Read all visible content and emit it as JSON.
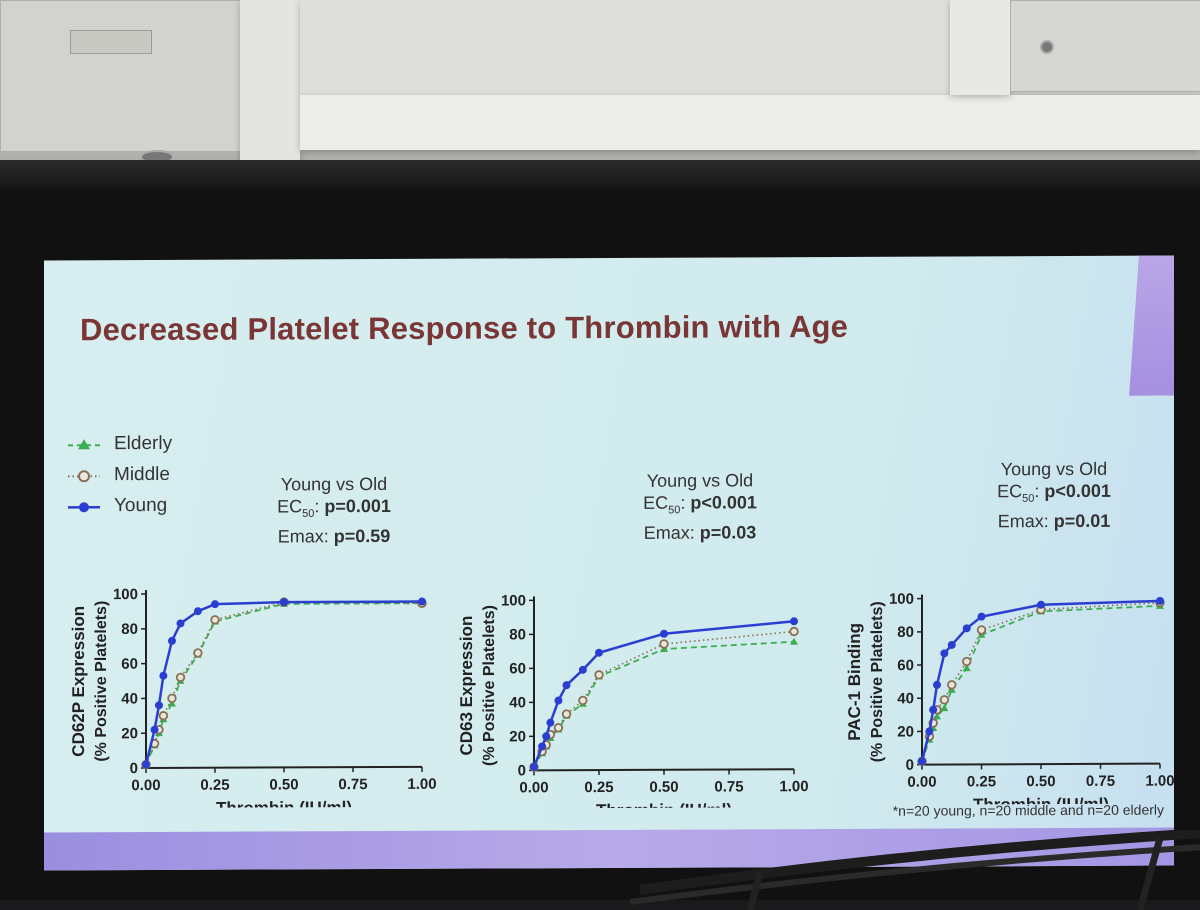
{
  "slide": {
    "title": "Decreased Platelet Response to Thrombin with Age",
    "legend": [
      {
        "label": "Elderly",
        "color": "#3cae4f",
        "marker": "triangle",
        "line": "dashed"
      },
      {
        "label": "Middle",
        "color": "#8a6f55",
        "marker": "open-circle",
        "line": "dotted"
      },
      {
        "label": "Young",
        "color": "#2a3fd2",
        "marker": "filled-circle",
        "line": "solid"
      }
    ],
    "stats": [
      {
        "heading": "Young vs Old",
        "ec_label": "EC",
        "ec_sub": "50",
        "ec_value": "p=0.001",
        "emax_label": "Emax:",
        "emax_value": "p=0.59"
      },
      {
        "heading": "Young vs Old",
        "ec_label": "EC",
        "ec_sub": "50",
        "ec_value": "p<0.001",
        "emax_label": "Emax:",
        "emax_value": "p=0.03"
      },
      {
        "heading": "Young vs Old",
        "ec_label": "EC",
        "ec_sub": "50",
        "ec_value": "p<0.001",
        "emax_label": "Emax:",
        "emax_value": "p=0.01"
      }
    ],
    "footnote": "*n=20 young, n=20 middle and n=20 elderly"
  },
  "chart_data": [
    {
      "type": "line",
      "xlabel": "Thrombin (IU/ml)",
      "ylabel": "CD62P Expression",
      "ylabel2": "(% Positive Platelets)",
      "xlim": [
        0,
        1.0
      ],
      "ylim": [
        0,
        100
      ],
      "xticks": [
        "0.00",
        "0.25",
        "0.50",
        "0.75",
        "1.00"
      ],
      "yticks": [
        "0",
        "20",
        "40",
        "60",
        "80",
        "100"
      ],
      "x": [
        0,
        0.031,
        0.047,
        0.063,
        0.094,
        0.125,
        0.188,
        0.25,
        0.5,
        1.0
      ],
      "series": [
        {
          "name": "Young",
          "values": [
            2,
            22,
            36,
            53,
            73,
            83,
            90,
            94,
            95,
            95
          ]
        },
        {
          "name": "Middle",
          "values": [
            2,
            14,
            22,
            30,
            40,
            52,
            66,
            85,
            95,
            94
          ]
        },
        {
          "name": "Elderly",
          "values": [
            2,
            13,
            20,
            28,
            37,
            50,
            65,
            84,
            94,
            94
          ]
        }
      ]
    },
    {
      "type": "line",
      "xlabel": "Thrombin (IU/ml)",
      "ylabel": "CD63 Expression",
      "ylabel2": "(% Positive Platelets)",
      "xlim": [
        0,
        1.0
      ],
      "ylim": [
        0,
        100
      ],
      "xticks": [
        "0.00",
        "0.25",
        "0.50",
        "0.75",
        "1.00"
      ],
      "yticks": [
        "0",
        "20",
        "40",
        "60",
        "80",
        "100"
      ],
      "x": [
        0,
        0.031,
        0.047,
        0.063,
        0.094,
        0.125,
        0.188,
        0.25,
        0.5,
        1.0
      ],
      "series": [
        {
          "name": "Young",
          "values": [
            2,
            14,
            20,
            28,
            41,
            50,
            59,
            69,
            80,
            87
          ]
        },
        {
          "name": "Middle",
          "values": [
            2,
            11,
            15,
            21,
            25,
            33,
            41,
            56,
            74,
            81
          ]
        },
        {
          "name": "Elderly",
          "values": [
            2,
            10,
            14,
            19,
            24,
            32,
            39,
            55,
            71,
            75
          ]
        }
      ]
    },
    {
      "type": "line",
      "xlabel": "Thrombin (IU/ml)",
      "ylabel": "PAC-1 Binding",
      "ylabel2": "(% Positive Platelets)",
      "xlim": [
        0,
        1.0
      ],
      "ylim": [
        0,
        100
      ],
      "xticks": [
        "0.00",
        "0.25",
        "0.50",
        "0.75",
        "1.00"
      ],
      "yticks": [
        "0",
        "20",
        "40",
        "60",
        "80",
        "100"
      ],
      "x": [
        0,
        0.031,
        0.047,
        0.063,
        0.094,
        0.125,
        0.188,
        0.25,
        0.5,
        1.0
      ],
      "series": [
        {
          "name": "Young",
          "values": [
            2,
            20,
            33,
            48,
            67,
            72,
            82,
            89,
            96,
            98
          ]
        },
        {
          "name": "Middle",
          "values": [
            2,
            17,
            25,
            33,
            39,
            48,
            62,
            81,
            93,
            97
          ]
        },
        {
          "name": "Elderly",
          "values": [
            2,
            15,
            22,
            29,
            34,
            45,
            58,
            78,
            92,
            95
          ]
        }
      ]
    }
  ]
}
